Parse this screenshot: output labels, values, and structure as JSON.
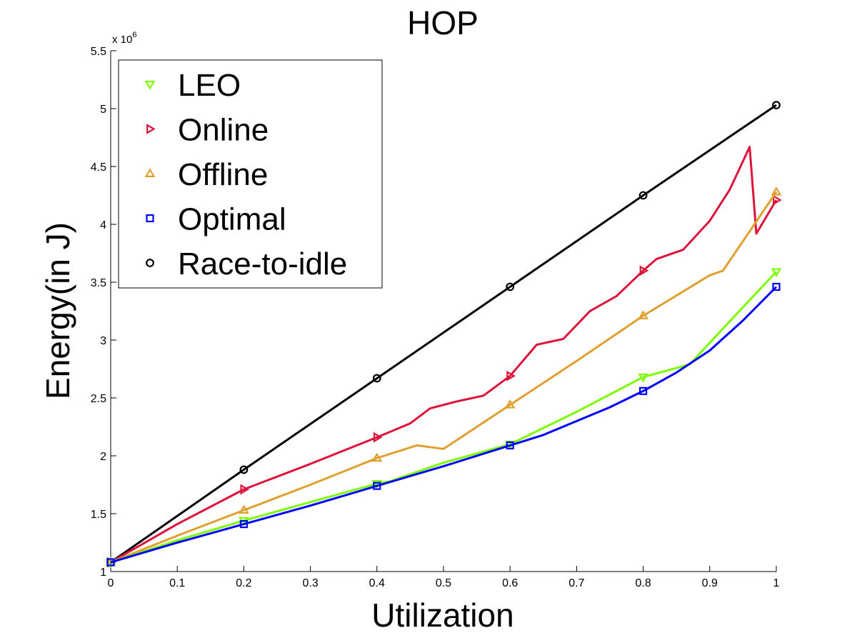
{
  "chart_data": {
    "type": "line",
    "title": "HOP",
    "xlabel": "Utilization",
    "ylabel": "Energy(in J)",
    "y_exponent_base": "x 10",
    "y_exponent_power": "6",
    "xlim": [
      0,
      1
    ],
    "ylim": [
      1,
      5.5
    ],
    "xticks": [
      0,
      0.1,
      0.2,
      0.3,
      0.4,
      0.5,
      0.6,
      0.7,
      0.8,
      0.9,
      1
    ],
    "xtick_labels": [
      "0",
      "0.1",
      "0.2",
      "0.3",
      "0.4",
      "0.5",
      "0.6",
      "0.7",
      "0.8",
      "0.9",
      "1"
    ],
    "yticks": [
      1,
      1.5,
      2,
      2.5,
      3,
      3.5,
      4,
      4.5,
      5,
      5.5
    ],
    "ytick_labels": [
      "1",
      "1.5",
      "2",
      "2.5",
      "3",
      "3.5",
      "4",
      "4.5",
      "5",
      "5.5"
    ],
    "grid": false,
    "legend_position": "top-left",
    "series": [
      {
        "name": "LEO",
        "color": "#7cfc00",
        "marker": "triangle-down",
        "x": [
          0,
          0.1,
          0.2,
          0.3,
          0.4,
          0.42,
          0.5,
          0.6,
          0.7,
          0.8,
          0.87,
          0.92,
          1
        ],
        "y": [
          1.08,
          1.27,
          1.44,
          1.6,
          1.76,
          1.78,
          1.94,
          2.1,
          2.38,
          2.68,
          2.79,
          3.1,
          3.59
        ],
        "markers_x": [
          0,
          0.2,
          0.4,
          0.6,
          0.8,
          1
        ],
        "markers_y": [
          1.08,
          1.44,
          1.76,
          2.1,
          2.68,
          3.59
        ]
      },
      {
        "name": "Online",
        "color": "#dc143c",
        "marker": "triangle-right",
        "x": [
          0,
          0.1,
          0.2,
          0.3,
          0.4,
          0.45,
          0.48,
          0.52,
          0.56,
          0.6,
          0.64,
          0.68,
          0.72,
          0.76,
          0.8,
          0.82,
          0.86,
          0.9,
          0.93,
          0.96,
          0.97,
          1
        ],
        "y": [
          1.08,
          1.41,
          1.71,
          1.93,
          2.16,
          2.28,
          2.41,
          2.47,
          2.52,
          2.69,
          2.96,
          3.01,
          3.25,
          3.38,
          3.6,
          3.7,
          3.78,
          4.03,
          4.3,
          4.67,
          3.92,
          4.21
        ],
        "markers_x": [
          0,
          0.2,
          0.4,
          0.6,
          0.8,
          1
        ],
        "markers_y": [
          1.08,
          1.71,
          2.16,
          2.69,
          3.6,
          4.21
        ]
      },
      {
        "name": "Offline",
        "color": "#e0a030",
        "marker": "triangle-up",
        "x": [
          0,
          0.1,
          0.2,
          0.3,
          0.4,
          0.46,
          0.5,
          0.6,
          0.7,
          0.8,
          0.9,
          0.92,
          1
        ],
        "y": [
          1.08,
          1.31,
          1.53,
          1.75,
          1.98,
          2.09,
          2.06,
          2.44,
          2.82,
          3.21,
          3.56,
          3.6,
          4.28
        ],
        "markers_x": [
          0,
          0.2,
          0.4,
          0.6,
          0.8,
          1
        ],
        "markers_y": [
          1.08,
          1.53,
          1.98,
          2.44,
          3.21,
          4.28
        ]
      },
      {
        "name": "Optimal",
        "color": "#0000ff",
        "marker": "square",
        "x": [
          0,
          0.1,
          0.2,
          0.3,
          0.4,
          0.5,
          0.6,
          0.65,
          0.7,
          0.75,
          0.8,
          0.85,
          0.9,
          0.95,
          1
        ],
        "y": [
          1.08,
          1.25,
          1.41,
          1.57,
          1.74,
          1.91,
          2.09,
          2.18,
          2.3,
          2.42,
          2.56,
          2.72,
          2.91,
          3.17,
          3.46
        ],
        "markers_x": [
          0,
          0.2,
          0.4,
          0.6,
          0.8,
          1
        ],
        "markers_y": [
          1.08,
          1.41,
          1.74,
          2.09,
          2.56,
          3.46
        ]
      },
      {
        "name": "Race-to-idle",
        "color": "#000000",
        "marker": "circle",
        "x": [
          0,
          0.2,
          0.4,
          0.6,
          0.8,
          1
        ],
        "y": [
          1.08,
          1.88,
          2.67,
          3.46,
          4.25,
          5.03
        ],
        "markers_x": [
          0,
          0.2,
          0.4,
          0.6,
          0.8,
          1
        ],
        "markers_y": [
          1.08,
          1.88,
          2.67,
          3.46,
          4.25,
          5.03
        ]
      }
    ]
  }
}
